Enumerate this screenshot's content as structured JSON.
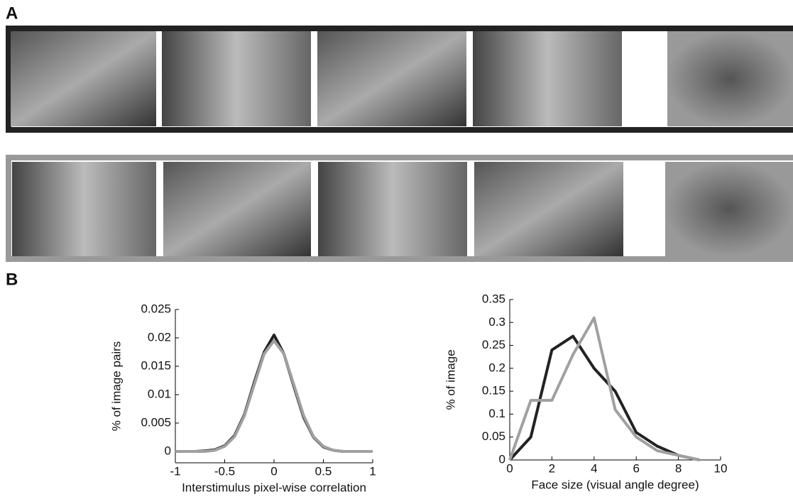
{
  "panel_labels": [
    "A",
    "B"
  ],
  "chart_data": [
    {
      "type": "line",
      "xlabel": "Interstimulus pixel-wise correlation",
      "ylabel": "% of image pairs",
      "x": [
        -1,
        -0.9,
        -0.8,
        -0.7,
        -0.6,
        -0.5,
        -0.4,
        -0.3,
        -0.2,
        -0.1,
        0,
        0.1,
        0.2,
        0.3,
        0.4,
        0.5,
        0.6,
        0.7,
        0.8,
        0.9,
        1
      ],
      "series": [
        {
          "color": "#222222",
          "values": [
            0,
            0,
            0,
            0.0001,
            0.0003,
            0.001,
            0.0028,
            0.0065,
            0.0122,
            0.0175,
            0.0205,
            0.0172,
            0.0115,
            0.006,
            0.0025,
            0.0008,
            0.0002,
            0,
            0,
            0,
            0
          ]
        },
        {
          "color": "#a0a0a0",
          "values": [
            0,
            0,
            0,
            0,
            0.0002,
            0.0009,
            0.0026,
            0.0063,
            0.0118,
            0.0172,
            0.0195,
            0.0172,
            0.0118,
            0.0063,
            0.0026,
            0.0009,
            0.0002,
            0,
            0,
            0,
            0
          ]
        }
      ],
      "xlim": [
        -1,
        1
      ],
      "xticks": [
        -1,
        -0.5,
        0,
        0.5,
        1
      ],
      "ylim": [
        -0.002,
        0.025
      ],
      "yticks": [
        0,
        0.005,
        0.01,
        0.015,
        0.02,
        0.025
      ]
    },
    {
      "type": "line",
      "xlabel": "Face size (visual angle degree)",
      "ylabel": "% of image",
      "x": [
        0,
        1,
        2,
        3,
        4,
        5,
        6,
        7,
        8,
        9
      ],
      "series": [
        {
          "color": "#222222",
          "values": [
            0,
            0.05,
            0.24,
            0.27,
            0.2,
            0.15,
            0.06,
            0.03,
            0.01,
            0
          ]
        },
        {
          "color": "#a0a0a0",
          "values": [
            0,
            0.13,
            0.13,
            0.23,
            0.31,
            0.11,
            0.05,
            0.02,
            0.01,
            0
          ]
        }
      ],
      "xlim": [
        0,
        10
      ],
      "xticks": [
        0,
        2,
        4,
        6,
        8,
        10
      ],
      "ylim": [
        0,
        0.35
      ],
      "yticks": [
        0,
        0.05,
        0.1,
        0.15,
        0.2,
        0.25,
        0.3,
        0.35
      ]
    }
  ]
}
